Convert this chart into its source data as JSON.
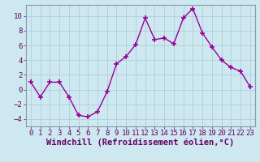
{
  "x": [
    0,
    1,
    2,
    3,
    4,
    5,
    6,
    7,
    8,
    9,
    10,
    11,
    12,
    13,
    14,
    15,
    16,
    17,
    18,
    19,
    20,
    21,
    22,
    23
  ],
  "y": [
    1,
    -1,
    1,
    1,
    -1,
    -3.5,
    -3.7,
    -3,
    -0.3,
    3.5,
    4.5,
    6.1,
    9.7,
    6.8,
    7,
    6.2,
    9.7,
    11,
    7.7,
    5.8,
    4.0,
    3.0,
    2.5,
    0.4
  ],
  "line_color": "#990099",
  "marker": "+",
  "marker_size": 5,
  "marker_linewidth": 1.2,
  "bg_color": "#cde8f0",
  "grid_color": "#b0cdd8",
  "xlabel": "Windchill (Refroidissement éolien,°C)",
  "xlabel_fontsize": 7.5,
  "tick_fontsize": 6.5,
  "ylim": [
    -5,
    11.5
  ],
  "xlim": [
    -0.5,
    23.5
  ],
  "yticks": [
    -4,
    -2,
    0,
    2,
    4,
    6,
    8,
    10
  ],
  "xticks": [
    0,
    1,
    2,
    3,
    4,
    5,
    6,
    7,
    8,
    9,
    10,
    11,
    12,
    13,
    14,
    15,
    16,
    17,
    18,
    19,
    20,
    21,
    22,
    23
  ]
}
